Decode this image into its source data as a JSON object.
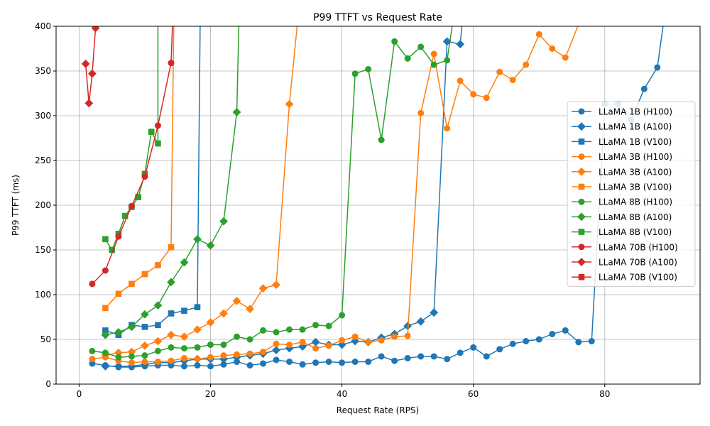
{
  "chart_data": {
    "type": "line",
    "title": "P99 TTFT vs Request Rate",
    "xlabel": "Request Rate (RPS)",
    "ylabel": "P99 TTFT (ms)",
    "xlim": [
      -3.5,
      94.5
    ],
    "ylim": [
      0,
      400
    ],
    "xticks": [
      0,
      20,
      40,
      60,
      80
    ],
    "yticks": [
      0,
      50,
      100,
      150,
      200,
      250,
      300,
      350,
      400
    ],
    "grid": true,
    "legend_position": "center-right",
    "colors": {
      "blue": "#1f77b4",
      "orange": "#ff7f0e",
      "green": "#2ca02c",
      "red": "#d62728"
    },
    "series": [
      {
        "name": "LLaMA 1B (H100)",
        "color": "#1f77b4",
        "marker": "circle",
        "x": [
          2,
          4,
          6,
          8,
          10,
          12,
          14,
          16,
          18,
          20,
          22,
          24,
          26,
          28,
          30,
          32,
          34,
          36,
          38,
          40,
          42,
          44,
          46,
          48,
          50,
          52,
          54,
          56,
          58,
          60,
          62,
          64,
          66,
          68,
          70,
          72,
          74,
          76,
          78,
          80,
          82,
          84,
          86,
          88,
          90
        ],
        "y": [
          23,
          21,
          19,
          19,
          20,
          21,
          21,
          20,
          21,
          20,
          22,
          25,
          21,
          23,
          27,
          25,
          22,
          24,
          25,
          24,
          25,
          25,
          31,
          26,
          29,
          31,
          31,
          28,
          35,
          41,
          31,
          39,
          45,
          48,
          50,
          56,
          60,
          47,
          48,
          313,
          313,
          295,
          330,
          354,
          460
        ]
      },
      {
        "name": "LLaMA 1B (A100)",
        "color": "#1f77b4",
        "marker": "diamond",
        "x": [
          4,
          6,
          8,
          10,
          12,
          14,
          16,
          18,
          20,
          22,
          24,
          26,
          28,
          30,
          32,
          34,
          36,
          38,
          40,
          42,
          44,
          46,
          48,
          50,
          52,
          54,
          56,
          58,
          59
        ],
        "y": [
          20,
          20,
          20,
          22,
          24,
          24,
          26,
          28,
          28,
          28,
          30,
          32,
          34,
          38,
          40,
          42,
          47,
          44,
          44,
          48,
          47,
          52,
          56,
          65,
          70,
          80,
          383,
          380,
          460
        ]
      },
      {
        "name": "LLaMA 1B (V100)",
        "color": "#1f77b4",
        "marker": "square",
        "x": [
          4,
          6,
          8,
          10,
          12,
          14,
          16,
          18,
          18.5
        ],
        "y": [
          60,
          55,
          66,
          64,
          66,
          79,
          82,
          86,
          460
        ]
      },
      {
        "name": "LLaMA 3B (H100)",
        "color": "#ff7f0e",
        "marker": "circle",
        "x": [
          2,
          4,
          6,
          8,
          10,
          12,
          14,
          16,
          18,
          20,
          22,
          24,
          26,
          28,
          30,
          32,
          34,
          36,
          38,
          40,
          42,
          44,
          46,
          48,
          50,
          52,
          54,
          56,
          58,
          60,
          62,
          64,
          66,
          68,
          70,
          72,
          74,
          76,
          78
        ],
        "y": [
          28,
          30,
          26,
          24,
          25,
          25,
          26,
          29,
          28,
          30,
          32,
          33,
          34,
          36,
          45,
          44,
          47,
          40,
          43,
          49,
          53,
          47,
          49,
          53,
          54,
          303,
          369,
          286,
          339,
          324,
          320,
          349,
          340,
          357,
          391,
          375,
          365,
          402,
          460
        ]
      },
      {
        "name": "LLaMA 3B (A100)",
        "color": "#ff7f0e",
        "marker": "diamond",
        "x": [
          4,
          6,
          8,
          10,
          12,
          14,
          16,
          18,
          20,
          22,
          24,
          26,
          28,
          30,
          32,
          34
        ],
        "y": [
          32,
          35,
          36,
          43,
          48,
          55,
          53,
          61,
          69,
          79,
          93,
          84,
          107,
          111,
          313,
          460
        ]
      },
      {
        "name": "LLaMA 3B (V100)",
        "color": "#ff7f0e",
        "marker": "square",
        "x": [
          4,
          6,
          8,
          10,
          12,
          14,
          14.5
        ],
        "y": [
          85,
          101,
          112,
          123,
          133,
          153,
          460
        ]
      },
      {
        "name": "LLaMA 8B (H100)",
        "color": "#2ca02c",
        "marker": "circle",
        "x": [
          2,
          4,
          6,
          8,
          10,
          12,
          14,
          16,
          18,
          20,
          22,
          24,
          26,
          28,
          30,
          32,
          34,
          36,
          38,
          40,
          42,
          44,
          46,
          48,
          50,
          52,
          54,
          56,
          58
        ],
        "y": [
          37,
          35,
          30,
          31,
          32,
          37,
          41,
          40,
          41,
          44,
          44,
          53,
          50,
          60,
          58,
          61,
          61,
          66,
          65,
          77,
          347,
          352,
          273,
          383,
          364,
          377,
          357,
          362,
          460
        ]
      },
      {
        "name": "LLaMA 8B (A100)",
        "color": "#2ca02c",
        "marker": "diamond",
        "x": [
          4,
          6,
          8,
          10,
          12,
          14,
          16,
          18,
          20,
          22,
          24,
          24.5
        ],
        "y": [
          55,
          58,
          64,
          78,
          88,
          114,
          136,
          162,
          155,
          182,
          304,
          460
        ]
      },
      {
        "name": "LLaMA 8B (V100)",
        "color": "#2ca02c",
        "marker": "square",
        "x": [
          4,
          5,
          6,
          7,
          8,
          9,
          10,
          11,
          12,
          12
        ],
        "y": [
          162,
          150,
          168,
          188,
          198,
          209,
          235,
          282,
          269,
          460
        ]
      },
      {
        "name": "LLaMA 70B (H100)",
        "color": "#d62728",
        "marker": "circle",
        "x": [
          2,
          4,
          6,
          8,
          10,
          12,
          14,
          14.5
        ],
        "y": [
          112,
          127,
          165,
          199,
          232,
          289,
          359,
          460
        ]
      },
      {
        "name": "LLaMA 70B (A100)",
        "color": "#d62728",
        "marker": "diamond",
        "x": [
          1,
          1.5,
          2,
          2.5,
          3
        ],
        "y": [
          358,
          314,
          347,
          398,
          460
        ]
      },
      {
        "name": "LLaMA 70B (V100)",
        "color": "#d62728",
        "marker": "square",
        "x": [],
        "y": []
      }
    ]
  }
}
